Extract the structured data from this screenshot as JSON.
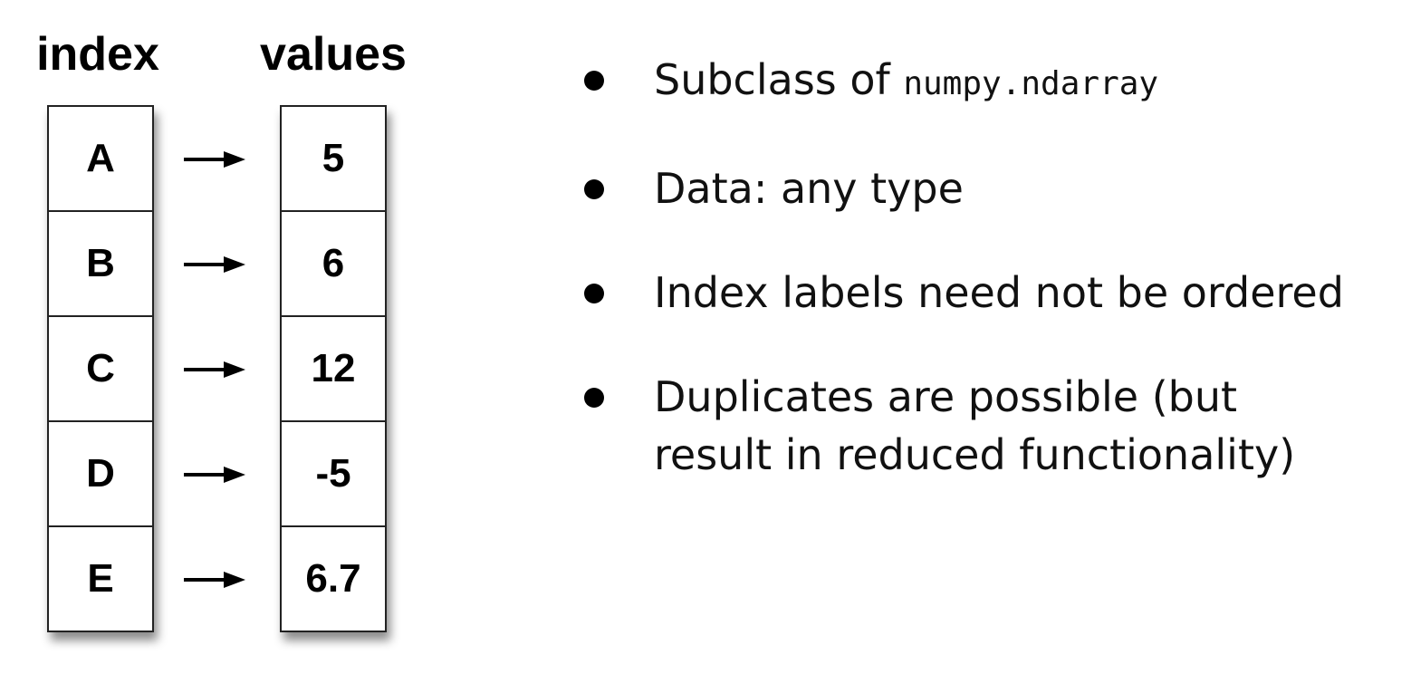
{
  "headers": {
    "index": "index",
    "values": "values"
  },
  "series": {
    "index": [
      "A",
      "B",
      "C",
      "D",
      "E"
    ],
    "values": [
      "5",
      "6",
      "12",
      "-5",
      "6.7"
    ]
  },
  "bullets": {
    "subclass_prefix": "Subclass of ",
    "subclass_code": "numpy.ndarray",
    "data_type": "Data: any type",
    "index_labels": "Index labels need not be ordered",
    "duplicates_line1": "Duplicates are possible (but",
    "duplicates_line2": "result in reduced functionality)"
  }
}
